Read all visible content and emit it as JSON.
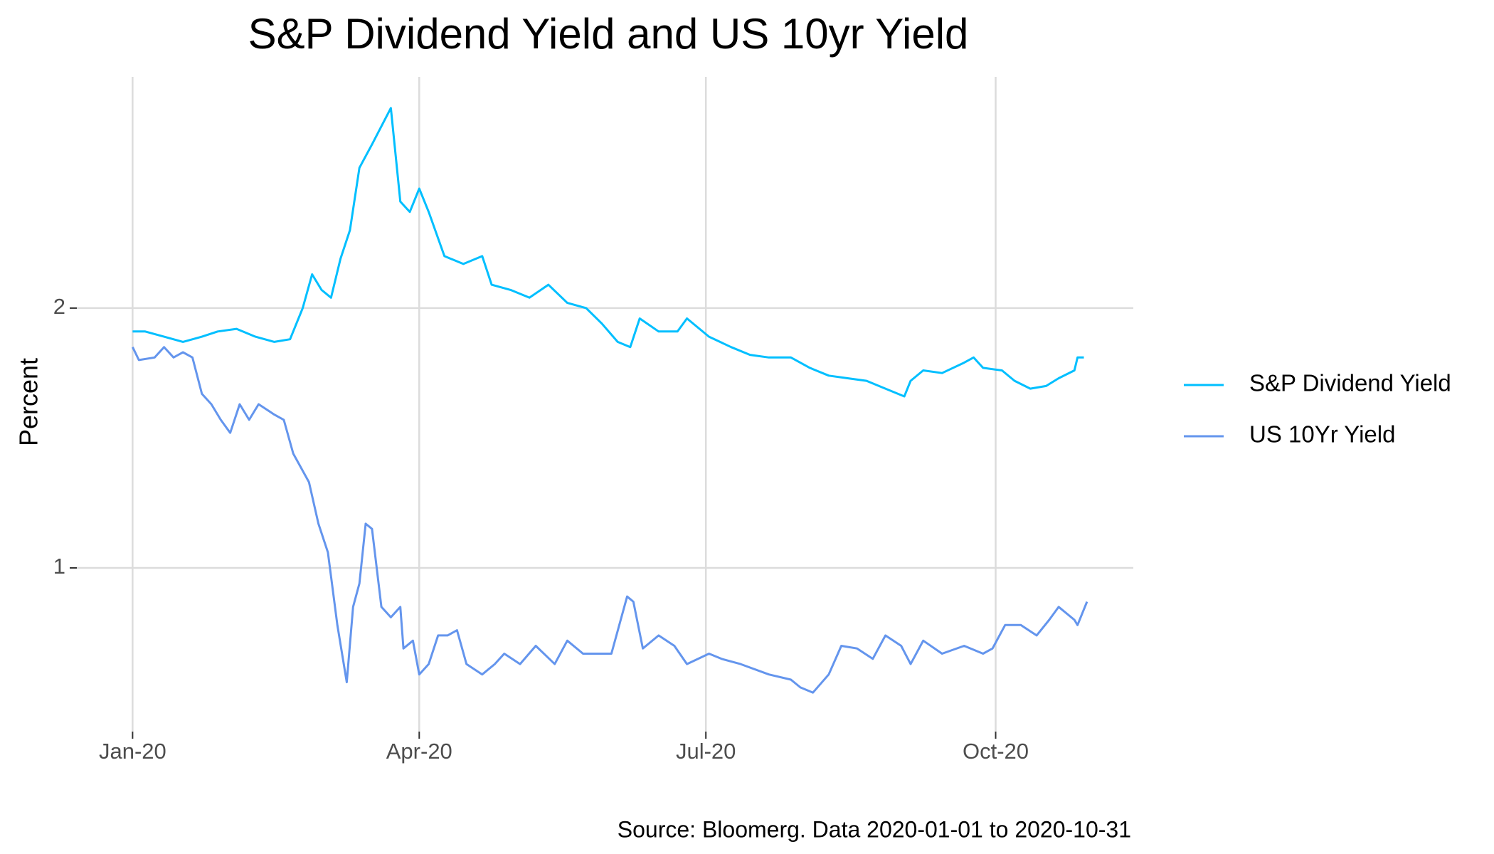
{
  "chart_data": {
    "type": "line",
    "title": "S&P Dividend Yield and US 10yr Yield",
    "ylabel": "Percent",
    "source": "Source: Bloomerg. Data 2020-01-01 to 2020-10-31",
    "xlim": [
      -17.7,
      317.7
    ],
    "xticks": [
      {
        "value": 0,
        "label": "Jan-20"
      },
      {
        "value": 91,
        "label": "Apr-20"
      },
      {
        "value": 182,
        "label": "Jul-20"
      },
      {
        "value": 274,
        "label": "Oct-20"
      }
    ],
    "ylim": [
      0.37,
      2.89
    ],
    "yticks": [
      1,
      2
    ],
    "grid": true,
    "legend": "right",
    "series": [
      {
        "name": "S&P Dividend Yield",
        "color": "#00bfff",
        "x": [
          0,
          4,
          10,
          16,
          22,
          27,
          33,
          39,
          45,
          50,
          54,
          57,
          60,
          63,
          66,
          69,
          72,
          76,
          79,
          82,
          85,
          88,
          91,
          94,
          99,
          105,
          111,
          114,
          120,
          126,
          132,
          138,
          144,
          149,
          154,
          158,
          161,
          167,
          173,
          176,
          183,
          190,
          196,
          202,
          209,
          215,
          221,
          227,
          233,
          239,
          245,
          247,
          251,
          257,
          264,
          267,
          270,
          276,
          280,
          285,
          290,
          294,
          299,
          300,
          302
        ],
        "values": [
          1.91,
          1.91,
          1.89,
          1.87,
          1.89,
          1.91,
          1.92,
          1.89,
          1.87,
          1.88,
          2.0,
          2.13,
          2.07,
          2.04,
          2.19,
          2.3,
          2.54,
          2.63,
          2.7,
          2.77,
          2.41,
          2.37,
          2.46,
          2.37,
          2.2,
          2.17,
          2.2,
          2.09,
          2.07,
          2.04,
          2.09,
          2.02,
          2.0,
          1.94,
          1.87,
          1.85,
          1.96,
          1.91,
          1.91,
          1.96,
          1.89,
          1.85,
          1.82,
          1.81,
          1.81,
          1.77,
          1.74,
          1.73,
          1.72,
          1.69,
          1.66,
          1.72,
          1.76,
          1.75,
          1.79,
          1.81,
          1.77,
          1.76,
          1.72,
          1.69,
          1.7,
          1.73,
          1.76,
          1.81,
          1.81
        ]
      },
      {
        "name": "US 10Yr Yield",
        "color": "#6495ed",
        "x": [
          0,
          2,
          7,
          10,
          13,
          16,
          19,
          22,
          25,
          28,
          31,
          34,
          37,
          40,
          45,
          48,
          51,
          56,
          59,
          62,
          65,
          68,
          70,
          72,
          74,
          76,
          79,
          82,
          85,
          86,
          89,
          91,
          94,
          97,
          100,
          103,
          106,
          111,
          115,
          118,
          123,
          128,
          134,
          138,
          143,
          149,
          152,
          157,
          159,
          162,
          167,
          172,
          176,
          183,
          187,
          193,
          202,
          209,
          212,
          216,
          221,
          225,
          230,
          235,
          239,
          244,
          247,
          251,
          257,
          264,
          270,
          273,
          277,
          282,
          287,
          291,
          294,
          299,
          300,
          303
        ],
        "values": [
          1.85,
          1.8,
          1.81,
          1.85,
          1.81,
          1.83,
          1.81,
          1.67,
          1.63,
          1.57,
          1.52,
          1.63,
          1.57,
          1.63,
          1.59,
          1.57,
          1.44,
          1.33,
          1.17,
          1.06,
          0.78,
          0.56,
          0.85,
          0.94,
          1.17,
          1.15,
          0.85,
          0.81,
          0.85,
          0.69,
          0.72,
          0.59,
          0.63,
          0.74,
          0.74,
          0.76,
          0.63,
          0.59,
          0.63,
          0.67,
          0.63,
          0.7,
          0.63,
          0.72,
          0.67,
          0.67,
          0.67,
          0.89,
          0.87,
          0.69,
          0.74,
          0.7,
          0.63,
          0.67,
          0.65,
          0.63,
          0.59,
          0.57,
          0.54,
          0.52,
          0.59,
          0.7,
          0.69,
          0.65,
          0.74,
          0.7,
          0.63,
          0.72,
          0.67,
          0.7,
          0.67,
          0.69,
          0.78,
          0.78,
          0.74,
          0.8,
          0.85,
          0.8,
          0.78,
          0.87
        ]
      }
    ]
  }
}
